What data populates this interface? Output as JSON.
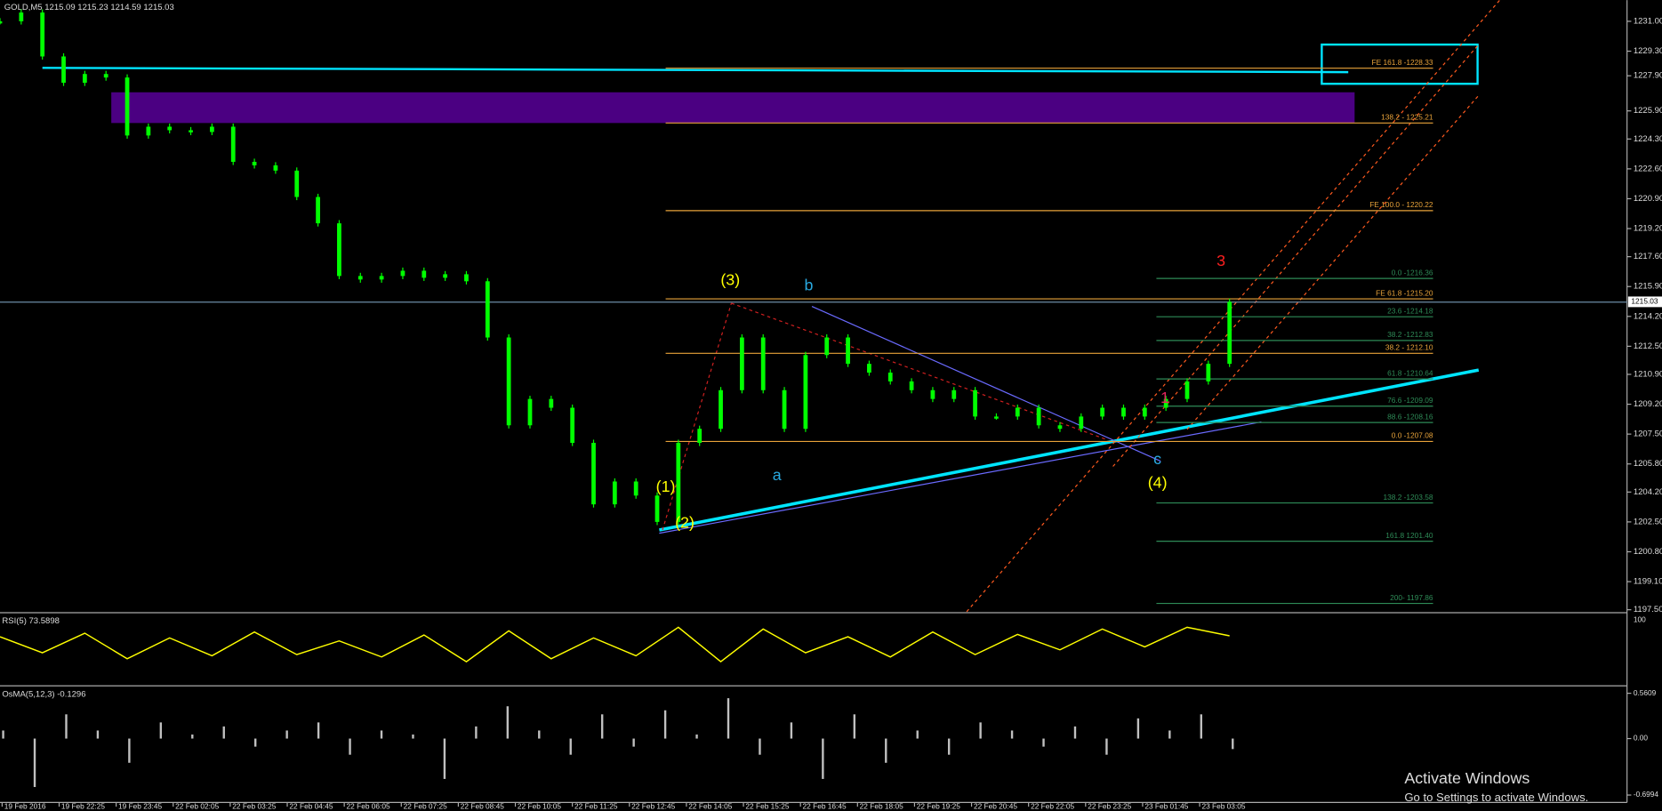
{
  "header": {
    "title": "GOLD,M5  1215.09 1215.23 1214.59 1215.03"
  },
  "price_axis": {
    "ylim": [
      1197.39,
      1232.21
    ],
    "ticks": [
      {
        "value": 1231.0,
        "label": "1231.00"
      },
      {
        "value": 1229.3,
        "label": "1229.30"
      },
      {
        "value": 1227.9,
        "label": "1227.90"
      },
      {
        "value": 1225.9,
        "label": "1225.90"
      },
      {
        "value": 1224.3,
        "label": "1224.30"
      },
      {
        "value": 1222.6,
        "label": "1222.60"
      },
      {
        "value": 1220.9,
        "label": "1220.90"
      },
      {
        "value": 1219.2,
        "label": "1219.20"
      },
      {
        "value": 1217.6,
        "label": "1217.60"
      },
      {
        "value": 1215.9,
        "label": "1215.90"
      },
      {
        "value": 1214.2,
        "label": "1214.20"
      },
      {
        "value": 1212.5,
        "label": "1212.50"
      },
      {
        "value": 1210.9,
        "label": "1210.90"
      },
      {
        "value": 1209.2,
        "label": "1209.20"
      },
      {
        "value": 1207.5,
        "label": "1207.50"
      },
      {
        "value": 1205.8,
        "label": "1205.80"
      },
      {
        "value": 1204.2,
        "label": "1204.20"
      },
      {
        "value": 1202.5,
        "label": "1202.50"
      },
      {
        "value": 1200.8,
        "label": "1200.80"
      },
      {
        "value": 1199.1,
        "label": "1199.10"
      },
      {
        "value": 1197.5,
        "label": "1197.50"
      }
    ],
    "current": {
      "value": 1215.03,
      "label": "1215.03"
    }
  },
  "time_axis": {
    "labels": [
      "19 Feb 2016",
      "19 Feb 22:25",
      "19 Feb 23:45",
      "22 Feb 02:05",
      "22 Feb 03:25",
      "22 Feb 04:45",
      "22 Feb 06:05",
      "22 Feb 07:25",
      "22 Feb 08:45",
      "22 Feb 10:05",
      "22 Feb 11:25",
      "22 Feb 12:45",
      "22 Feb 14:05",
      "22 Feb 15:25",
      "22 Feb 16:45",
      "22 Feb 18:05",
      "22 Feb 19:25",
      "22 Feb 20:45",
      "22 Feb 22:05",
      "22 Feb 23:25",
      "23 Feb 01:45",
      "23 Feb 03:05"
    ]
  },
  "price": {
    "color": "#00ff00",
    "values": [
      1231,
      1231.5,
      1229,
      1227.5,
      1228,
      1227.8,
      1224.5,
      1225,
      1224.8,
      1224.7,
      1225,
      1223,
      1222.8,
      1222.5,
      1221,
      1219.5,
      1216.5,
      1216.3,
      1216.5,
      1216.8,
      1216.4,
      1216.6,
      1216.2,
      1213,
      1208,
      1209.5,
      1209,
      1207,
      1203.5,
      1204.8,
      1204,
      1202.5,
      1207,
      1207.8,
      1210,
      1213,
      1210,
      1207.8,
      1212,
      1213,
      1211.5,
      1211,
      1210.5,
      1210,
      1209.5,
      1210,
      1208.5,
      1208.5,
      1209,
      1208,
      1207.8,
      1208.5,
      1209,
      1208.5,
      1209,
      1209.5,
      1210.5,
      1211.5,
      1215.03
    ]
  },
  "levels": [
    {
      "label": "FE 161.8 -1228.33",
      "price": 1228.33,
      "color": "#e8a33a",
      "kind": "orange"
    },
    {
      "label": "138.2 - 1225.21",
      "price": 1225.21,
      "color": "#e8a33a",
      "kind": "orange"
    },
    {
      "label": "FE 100.0 - 1220.22",
      "price": 1220.22,
      "color": "#e8a33a",
      "kind": "orange"
    },
    {
      "label": "0.0 -1216.36",
      "price": 1216.36,
      "color": "#2e8b57",
      "kind": "green"
    },
    {
      "label": "FE 61.8 -1215.20",
      "price": 1215.2,
      "color": "#e8a33a",
      "kind": "orange"
    },
    {
      "label": "23.6 -1214.18",
      "price": 1214.18,
      "color": "#2e8b57",
      "kind": "green"
    },
    {
      "label": "38.2 -1212.83",
      "price": 1212.83,
      "color": "#2e8b57",
      "kind": "green"
    },
    {
      "label": "38.2 - 1212.10",
      "price": 1212.1,
      "color": "#e8a33a",
      "kind": "orange"
    },
    {
      "label": "61.8 -1210.64",
      "price": 1210.64,
      "color": "#2e8b57",
      "kind": "green"
    },
    {
      "label": "76.6 -1209.09",
      "price": 1209.09,
      "color": "#2e8b57",
      "kind": "green"
    },
    {
      "label": "88.6 -1208.16",
      "price": 1208.16,
      "color": "#2e8b57",
      "kind": "green"
    },
    {
      "label": "0.0 -1207.08",
      "price": 1207.08,
      "color": "#e8a33a",
      "kind": "orange"
    },
    {
      "label": "138.2 -1203.58",
      "price": 1203.58,
      "color": "#2e8b57",
      "kind": "green"
    },
    {
      "label": "161.8 1201.40",
      "price": 1201.4,
      "color": "#2e8b57",
      "kind": "green"
    },
    {
      "label": "200- 1197.86",
      "price": 1197.86,
      "color": "#2e8b57",
      "kind": "green"
    }
  ],
  "waves": [
    {
      "label": "(1)",
      "color": "#ffff00"
    },
    {
      "label": "(2)",
      "color": "#ffff00"
    },
    {
      "label": "(3)",
      "color": "#ffff00"
    },
    {
      "label": "(4)",
      "color": "#ffff00"
    },
    {
      "label": "a",
      "color": "#29a9e0"
    },
    {
      "label": "b",
      "color": "#29a9e0"
    },
    {
      "label": "c",
      "color": "#29a9e0"
    },
    {
      "label": "1",
      "color": "#e0245e"
    },
    {
      "label": "3",
      "color": "#ff2020"
    }
  ],
  "rsi": {
    "label": "RSI(5) 73.5898",
    "ylim": [
      0,
      100
    ],
    "ticks": [
      100
    ],
    "color": "#ffff00",
    "values": [
      72,
      45,
      78,
      35,
      70,
      40,
      80,
      42,
      65,
      38,
      75,
      30,
      82,
      35,
      70,
      40,
      88,
      30,
      85,
      45,
      72,
      38,
      80,
      42,
      76,
      50,
      85,
      55,
      88,
      73.59
    ]
  },
  "osma": {
    "label": "OsMA(5,12,3) -0.1296",
    "ylim": [
      -0.6994,
      0.5609
    ],
    "color": "#c0c0c0",
    "ticks": [
      {
        "value": 0.5609,
        "label": "0.5609"
      },
      {
        "value": 0,
        "label": "0.00"
      },
      {
        "value": -0.6994,
        "label": "-0.6994"
      }
    ],
    "values": [
      0.1,
      -0.6,
      0.3,
      0.1,
      -0.3,
      0.2,
      0.05,
      0.15,
      -0.1,
      0.1,
      0.2,
      -0.2,
      0.1,
      0.05,
      -0.5,
      0.15,
      0.4,
      0.1,
      -0.2,
      0.3,
      -0.1,
      0.35,
      0.05,
      0.5,
      -0.2,
      0.2,
      -0.5,
      0.3,
      -0.3,
      0.1,
      -0.2,
      0.2,
      0.1,
      -0.1,
      0.15,
      -0.2,
      0.25,
      0.1,
      0.3,
      -0.13
    ]
  },
  "watermark": {
    "title": "Activate Windows",
    "subtitle": "Go to Settings to activate Windows."
  }
}
